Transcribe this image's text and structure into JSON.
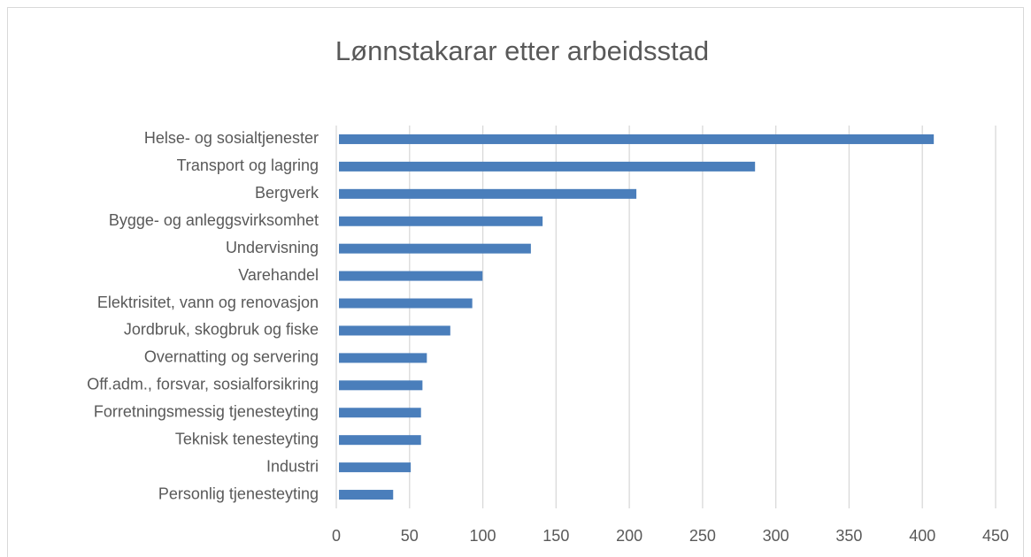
{
  "chart_data": {
    "type": "barh",
    "title": "Lønnstakarar etter arbeidsstad",
    "categories": [
      "Helse- og sosialtjenester",
      "Transport og lagring",
      "Bergverk",
      "Bygge- og anleggsvirksomhet",
      "Undervisning",
      "Varehandel",
      "Elektrisitet, vann og renovasjon",
      "Jordbruk, skogbruk og fiske",
      "Overnatting og servering",
      "Off.adm., forsvar, sosialforsikring",
      "Forretningsmessig tjenesteyting",
      "Teknisk tenesteyting",
      "Industri",
      "Personlig tjenesteyting"
    ],
    "values": [
      406,
      284,
      203,
      139,
      131,
      98,
      91,
      76,
      60,
      57,
      56,
      56,
      49,
      37
    ],
    "color": "#4a7ebb",
    "xlim": [
      0,
      450
    ],
    "xticks": [
      0,
      50,
      100,
      150,
      200,
      250,
      300,
      350,
      400,
      450
    ],
    "grid": true
  }
}
